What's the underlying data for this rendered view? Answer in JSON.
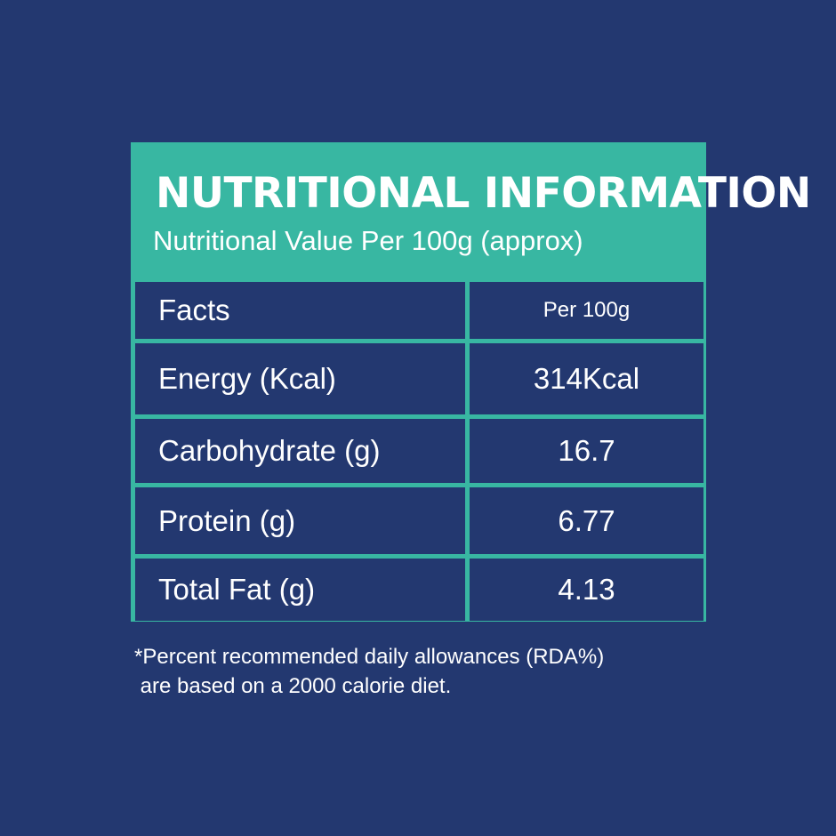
{
  "header": {
    "title": "NUTRITIONAL INFORMATION",
    "subtitle": "Nutritional Value Per 100g (approx)"
  },
  "table": {
    "column_headers": [
      "Facts",
      "Per 100g"
    ],
    "rows": [
      {
        "label": "Energy (Kcal)",
        "value": "314Kcal"
      },
      {
        "label": "Carbohydrate (g)",
        "value": "16.7"
      },
      {
        "label": "Protein (g)",
        "value": "6.77"
      },
      {
        "label": "Total Fat (g)",
        "value": "4.13"
      }
    ]
  },
  "footnote": {
    "line1": "*Percent recommended daily allowances (RDA%)",
    "line2": " are based on a 2000 calorie diet."
  },
  "colors": {
    "background": "#233870",
    "accent": "#38b7a2",
    "text": "#ffffff"
  }
}
